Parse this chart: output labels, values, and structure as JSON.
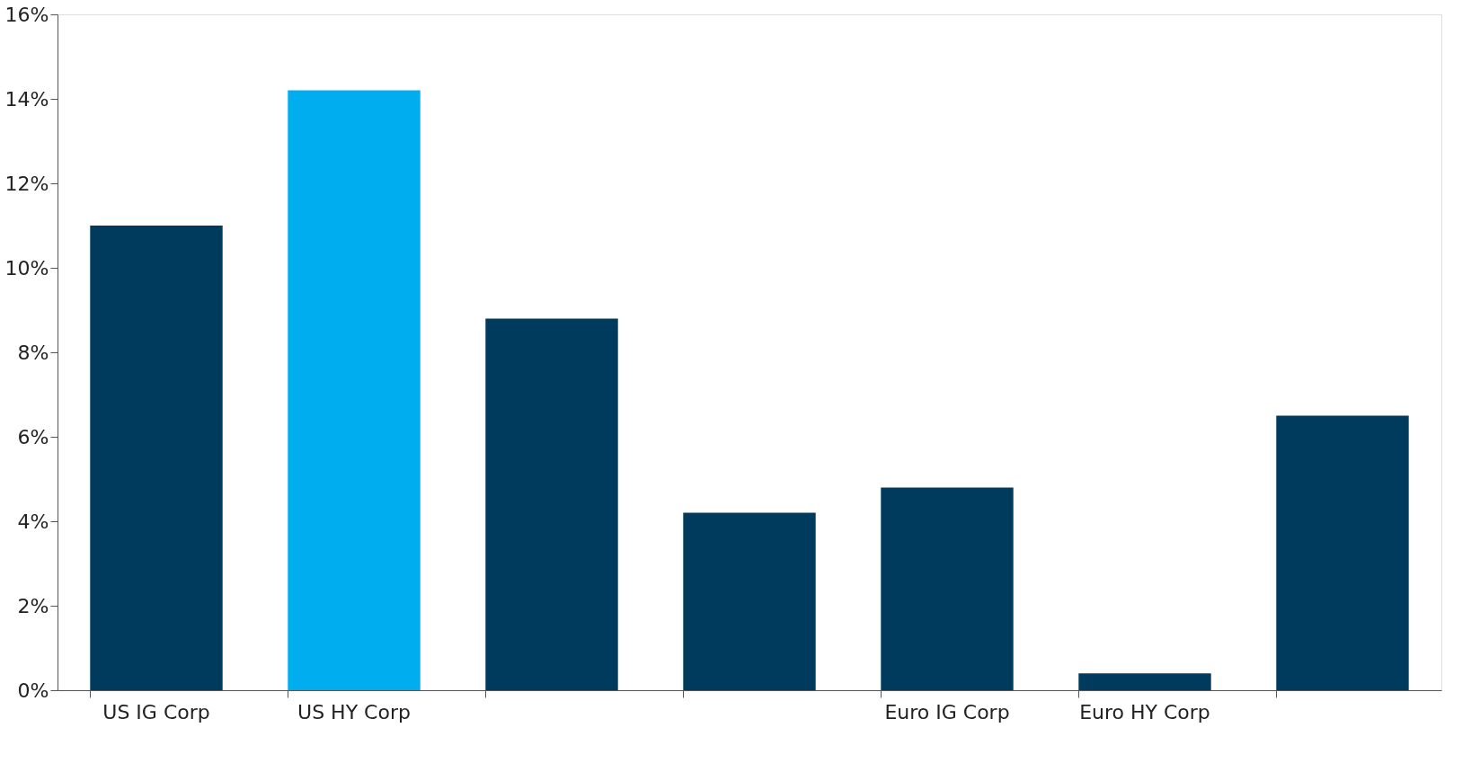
{
  "chart_data": {
    "type": "bar",
    "categories": [
      "US IG Corp",
      "US HY Corp",
      null,
      null,
      "Euro IG Corp",
      "Euro HY Corp",
      null
    ],
    "values": [
      11.0,
      14.2,
      8.8,
      4.2,
      4.8,
      0.4,
      6.5
    ],
    "colors": [
      "#003a5d",
      "#00aeef",
      "#003a5d",
      "#003a5d",
      "#003a5d",
      "#003a5d",
      "#003a5d"
    ],
    "ylim": [
      0,
      16
    ],
    "yticks": [
      {
        "value": 0,
        "label": "0%"
      },
      {
        "value": 2,
        "label": "2%"
      },
      {
        "value": 4,
        "label": "4%"
      },
      {
        "value": 6,
        "label": "6%"
      },
      {
        "value": 8,
        "label": "8%"
      },
      {
        "value": 10,
        "label": "10%"
      },
      {
        "value": 12,
        "label": "12%"
      },
      {
        "value": 14,
        "label": "14%"
      },
      {
        "value": 16,
        "label": "16%"
      }
    ],
    "grid": false
  }
}
